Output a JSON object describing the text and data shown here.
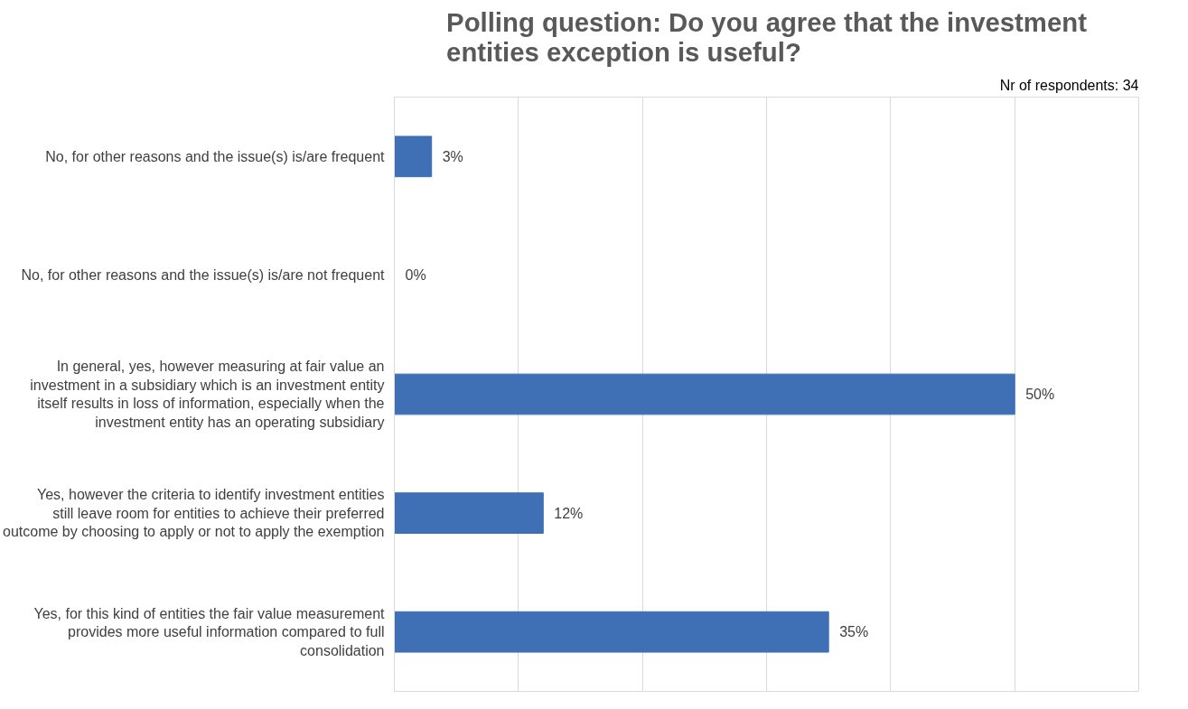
{
  "chart_data": {
    "type": "bar",
    "orientation": "horizontal",
    "title": "Polling question: Do you agree that the investment entities exception is useful?",
    "categories": [
      "No, for other reasons and the issue(s) is/are frequent",
      "No, for other reasons and the issue(s) is/are not frequent",
      "In general, yes, however measuring at fair value an investment in a subsidiary which is an investment entity itself results in loss of information, especially when the investment entity has an operating subsidiary",
      "Yes, however the criteria to identify investment entities still leave room for entities to achieve their preferred outcome by choosing to apply or not to apply the exemption",
      "Yes, for this kind of entities the fair value measurement provides more useful information compared to full consolidation"
    ],
    "values": [
      3,
      0,
      50,
      12,
      35
    ],
    "value_labels": [
      "3%",
      "0%",
      "50%",
      "12%",
      "35%"
    ],
    "color": "#3f6fb5",
    "xlim": [
      0,
      60
    ],
    "tick_labels": "y",
    "grid": "x",
    "annotations": [
      "Nr of respondents: 34"
    ]
  }
}
